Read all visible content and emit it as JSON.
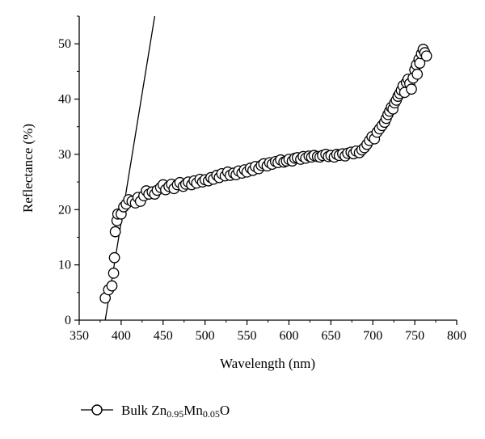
{
  "chart_data": {
    "type": "scatter",
    "xlabel": "Wavelength (nm)",
    "ylabel": "Reflectance (%)",
    "xlim": [
      350,
      800
    ],
    "ylim": [
      0,
      55
    ],
    "x_ticks": [
      350,
      400,
      450,
      500,
      550,
      600,
      650,
      700,
      750,
      800
    ],
    "y_ticks": [
      0,
      10,
      20,
      30,
      40,
      50
    ],
    "grid": false,
    "legend_position": "bottom-left",
    "series": [
      {
        "name": "Bulk Zn0.95Mn0.05O",
        "marker": "open-circle",
        "line_color": "#000000",
        "points": [
          [
            381,
            4
          ],
          [
            385,
            5.5
          ],
          [
            389,
            6.2
          ],
          [
            391,
            8.5
          ],
          [
            392,
            11.3
          ],
          [
            393,
            16
          ],
          [
            395,
            18
          ],
          [
            396,
            19.2
          ],
          [
            400,
            19.2
          ],
          [
            403,
            20.5
          ],
          [
            406,
            21
          ],
          [
            409,
            21.8
          ],
          [
            413,
            21.5
          ],
          [
            417,
            21.2
          ],
          [
            420,
            22.2
          ],
          [
            423,
            21.5
          ],
          [
            427,
            22.5
          ],
          [
            430,
            23.4
          ],
          [
            433,
            22.8
          ],
          [
            437,
            23.2
          ],
          [
            440,
            22.8
          ],
          [
            443,
            23.5
          ],
          [
            447,
            24
          ],
          [
            450,
            24.5
          ],
          [
            453,
            23.6
          ],
          [
            457,
            24.2
          ],
          [
            460,
            24.6
          ],
          [
            463,
            23.8
          ],
          [
            467,
            24.5
          ],
          [
            470,
            24.9
          ],
          [
            474,
            24.2
          ],
          [
            477,
            24.6
          ],
          [
            480,
            25
          ],
          [
            484,
            24.5
          ],
          [
            487,
            25.2
          ],
          [
            490,
            24.8
          ],
          [
            494,
            25.5
          ],
          [
            497,
            25
          ],
          [
            500,
            25.4
          ],
          [
            504,
            25.2
          ],
          [
            507,
            25.8
          ],
          [
            510,
            25.5
          ],
          [
            514,
            26.2
          ],
          [
            517,
            25.8
          ],
          [
            520,
            26.5
          ],
          [
            524,
            26.1
          ],
          [
            527,
            26.8
          ],
          [
            530,
            26.2
          ],
          [
            534,
            26.6
          ],
          [
            537,
            26.3
          ],
          [
            540,
            27
          ],
          [
            544,
            26.6
          ],
          [
            547,
            27.2
          ],
          [
            550,
            26.8
          ],
          [
            554,
            27.5
          ],
          [
            557,
            27.1
          ],
          [
            560,
            27.8
          ],
          [
            564,
            27.4
          ],
          [
            567,
            28
          ],
          [
            570,
            28.3
          ],
          [
            574,
            27.9
          ],
          [
            577,
            28.5
          ],
          [
            580,
            28.2
          ],
          [
            584,
            28.7
          ],
          [
            587,
            28.5
          ],
          [
            590,
            29
          ],
          [
            594,
            28.6
          ],
          [
            597,
            28.8
          ],
          [
            600,
            29.1
          ],
          [
            604,
            28.8
          ],
          [
            607,
            29.3
          ],
          [
            610,
            29.4
          ],
          [
            614,
            29.1
          ],
          [
            617,
            29.6
          ],
          [
            620,
            29.3
          ],
          [
            624,
            29.7
          ],
          [
            627,
            29.5
          ],
          [
            630,
            29.8
          ],
          [
            634,
            29.6
          ],
          [
            637,
            29.5
          ],
          [
            640,
            29.8
          ],
          [
            644,
            30
          ],
          [
            647,
            29.6
          ],
          [
            650,
            29.8
          ],
          [
            654,
            29.5
          ],
          [
            657,
            30
          ],
          [
            660,
            29.8
          ],
          [
            664,
            30.1
          ],
          [
            667,
            29.7
          ],
          [
            670,
            30.2
          ],
          [
            674,
            30.4
          ],
          [
            677,
            30.1
          ],
          [
            680,
            30.6
          ],
          [
            684,
            30.3
          ],
          [
            687,
            30.8
          ],
          [
            690,
            31.2
          ],
          [
            693,
            31.8
          ],
          [
            696,
            32.5
          ],
          [
            699,
            33.2
          ],
          [
            702,
            32.8
          ],
          [
            705,
            34
          ],
          [
            708,
            34.6
          ],
          [
            711,
            35.2
          ],
          [
            714,
            35.8
          ],
          [
            716,
            36.5
          ],
          [
            718,
            37.2
          ],
          [
            720,
            37.8
          ],
          [
            722,
            38.5
          ],
          [
            724,
            38.2
          ],
          [
            726,
            39.3
          ],
          [
            728,
            39.8
          ],
          [
            730,
            40.5
          ],
          [
            732,
            41
          ],
          [
            734,
            41.6
          ],
          [
            736,
            42.4
          ],
          [
            738,
            41.2
          ],
          [
            740,
            43
          ],
          [
            742,
            43.6
          ],
          [
            744,
            42.8
          ],
          [
            746,
            41.8
          ],
          [
            748,
            43.8
          ],
          [
            750,
            45.3
          ],
          [
            752,
            46.2
          ],
          [
            753,
            44.5
          ],
          [
            755,
            47.2
          ],
          [
            756,
            46.5
          ],
          [
            758,
            48.2
          ],
          [
            760,
            49
          ],
          [
            762,
            48.4
          ],
          [
            764,
            47.8
          ]
        ]
      }
    ],
    "fit_line": {
      "points": [
        [
          381,
          0
        ],
        [
          440,
          55
        ]
      ],
      "color": "#000000"
    }
  },
  "legend": {
    "prefix": "Bulk Zn",
    "sub1": "0.95",
    "mid": "Mn",
    "sub2": "0.05",
    "suffix": "O"
  }
}
